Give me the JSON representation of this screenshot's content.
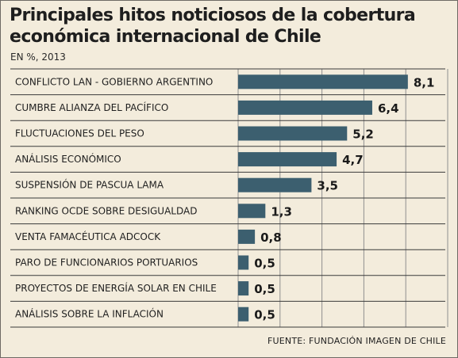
{
  "title": "Principales hitos noticiosos de la cobertura económica internacional de Chile",
  "subtitle": "EN %, 2013",
  "source": "FUENTE: FUNDACIÓN IMAGEN DE CHILE",
  "colors": {
    "bar": "#3c5f6f",
    "background": "#f3ecdc",
    "separator": "#3a3a3a",
    "gridline": "#8f8f8f"
  },
  "chart_data": {
    "type": "bar",
    "orientation": "horizontal",
    "categories": [
      "CONFLICTO LAN - GOBIERNO ARGENTINO",
      "CUMBRE ALIANZA DEL PACÍFICO",
      "FLUCTUACIONES DEL PESO",
      "ANÁLISIS ECONÓMICO",
      "SUSPENSIÓN DE PASCUA LAMA",
      "RANKING OCDE SOBRE DESIGUALDAD",
      "VENTA FAMACÉUTICA ADCOCK",
      "PARO DE FUNCIONARIOS PORTUARIOS",
      "PROYECTOS DE ENERGÍA SOLAR EN CHILE",
      "ANÁLISIS SOBRE LA INFLACIÓN"
    ],
    "values": [
      8.1,
      6.4,
      5.2,
      4.7,
      3.5,
      1.3,
      0.8,
      0.5,
      0.5,
      0.5
    ],
    "value_labels": [
      "8,1",
      "6,4",
      "5,2",
      "4,7",
      "3,5",
      "1,3",
      "0,8",
      "0,5",
      "0,5",
      "0,5"
    ],
    "xlim": [
      0,
      10
    ],
    "grid": true,
    "legend": "none"
  }
}
